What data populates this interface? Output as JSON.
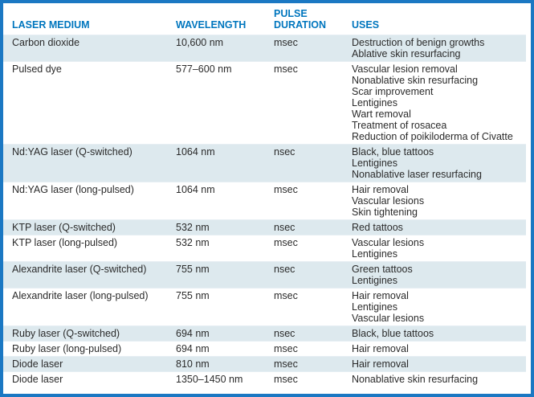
{
  "table": {
    "columns": [
      {
        "key": "medium",
        "label": "LASER MEDIUM"
      },
      {
        "key": "wavelength",
        "label": "WAVELENGTH"
      },
      {
        "key": "pulse",
        "label": "PULSE DURATION"
      },
      {
        "key": "uses",
        "label": "USES"
      }
    ],
    "rows": [
      {
        "medium": "Carbon dioxide",
        "wavelength": "10,600 nm",
        "pulse": "msec",
        "uses": [
          "Destruction of benign growths",
          "Ablative skin resurfacing"
        ]
      },
      {
        "medium": "Pulsed dye",
        "wavelength": "577–600 nm",
        "pulse": "msec",
        "uses": [
          "Vascular lesion removal",
          "Nonablative skin resurfacing",
          "Scar improvement",
          "Lentigines",
          "Wart removal",
          "Treatment of rosacea",
          "Reduction of poikiloderma of Civatte"
        ]
      },
      {
        "medium": "Nd:YAG laser (Q-switched)",
        "wavelength": "1064 nm",
        "pulse": "nsec",
        "uses": [
          "Black, blue tattoos",
          "Lentigines",
          "Nonablative laser resurfacing"
        ]
      },
      {
        "medium": "Nd:YAG laser (long-pulsed)",
        "wavelength": "1064 nm",
        "pulse": "msec",
        "uses": [
          "Hair removal",
          "Vascular lesions",
          "Skin tightening"
        ]
      },
      {
        "medium": "KTP laser (Q-switched)",
        "wavelength": "532 nm",
        "pulse": "nsec",
        "uses": [
          "Red tattoos"
        ]
      },
      {
        "medium": "KTP laser (long-pulsed)",
        "wavelength": "532 nm",
        "pulse": "msec",
        "uses": [
          "Vascular lesions",
          "Lentigines"
        ]
      },
      {
        "medium": "Alexandrite laser (Q-switched)",
        "wavelength": "755 nm",
        "pulse": "nsec",
        "uses": [
          "Green tattoos",
          "Lentigines"
        ]
      },
      {
        "medium": "Alexandrite laser (long-pulsed)",
        "wavelength": "755 nm",
        "pulse": "msec",
        "uses": [
          "Hair removal",
          "Lentigines",
          "Vascular lesions"
        ]
      },
      {
        "medium": "Ruby laser (Q-switched)",
        "wavelength": "694 nm",
        "pulse": "nsec",
        "uses": [
          "Black, blue tattoos"
        ]
      },
      {
        "medium": "Ruby laser (long-pulsed)",
        "wavelength": "694 nm",
        "pulse": "msec",
        "uses": [
          "Hair removal"
        ]
      },
      {
        "medium": "Diode laser",
        "wavelength": "810 nm",
        "pulse": "msec",
        "uses": [
          "Hair removal"
        ]
      },
      {
        "medium": "Diode laser",
        "wavelength": "1350–1450 nm",
        "pulse": "msec",
        "uses": [
          "Nonablative skin resurfacing"
        ]
      }
    ]
  },
  "colors": {
    "border": "#1b78c3",
    "header_text": "#0076be",
    "shaded_row": "#dde9ee",
    "body_text": "#2b2b2b"
  }
}
